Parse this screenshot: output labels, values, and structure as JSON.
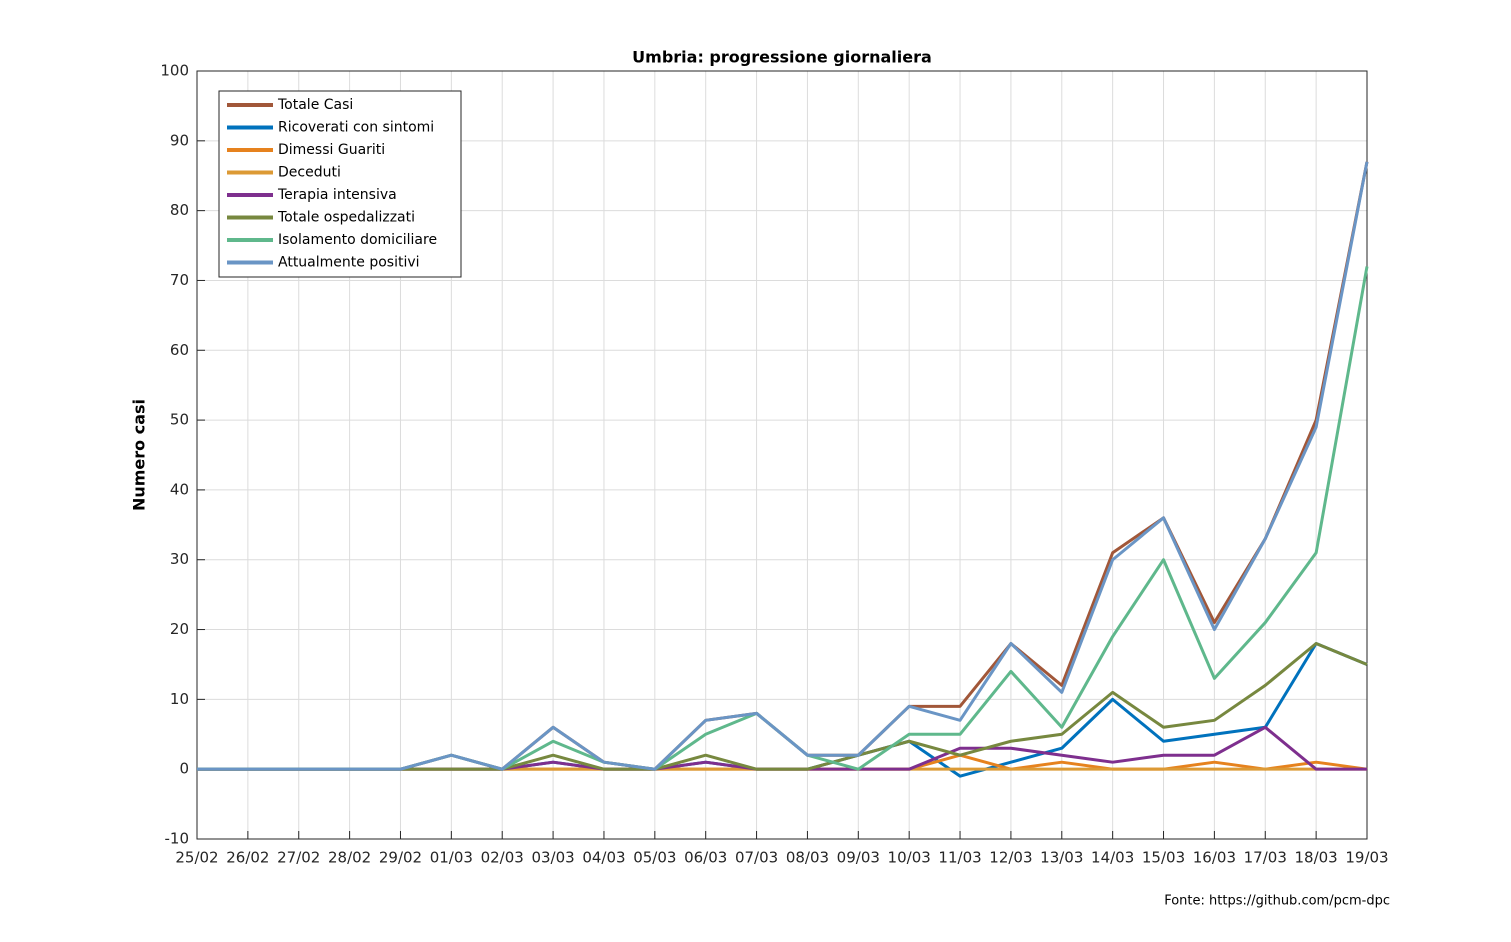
{
  "chart_data": {
    "type": "line",
    "title": "Umbria: progressione giornaliera",
    "y_label": "Numero casi",
    "source": "Fonte: https://github.com/pcm-dpc",
    "categories": [
      "25/02",
      "26/02",
      "27/02",
      "28/02",
      "29/02",
      "01/03",
      "02/03",
      "03/03",
      "04/03",
      "05/03",
      "06/03",
      "07/03",
      "08/03",
      "09/03",
      "10/03",
      "11/03",
      "12/03",
      "13/03",
      "14/03",
      "15/03",
      "16/03",
      "17/03",
      "18/03",
      "19/03"
    ],
    "ylim": [
      -10,
      100
    ],
    "yticks": [
      -10,
      0,
      10,
      20,
      30,
      40,
      50,
      60,
      70,
      80,
      90,
      100
    ],
    "grid": true,
    "legend": "upper left",
    "series": [
      {
        "name": "Totale Casi",
        "color": "#a15739",
        "values": [
          0,
          0,
          0,
          0,
          0,
          2,
          0,
          6,
          1,
          0,
          7,
          8,
          2,
          2,
          9,
          9,
          18,
          12,
          31,
          36,
          21,
          33,
          50,
          87
        ]
      },
      {
        "name": "Ricoverati con sintomi",
        "color": "#0072bd",
        "values": [
          0,
          0,
          0,
          0,
          0,
          0,
          0,
          1,
          0,
          0,
          1,
          0,
          0,
          2,
          4,
          -1,
          1,
          3,
          10,
          4,
          5,
          6,
          18,
          15
        ]
      },
      {
        "name": "Dimessi Guariti",
        "color": "#e6821e",
        "values": [
          0,
          0,
          0,
          0,
          0,
          0,
          0,
          0,
          0,
          0,
          0,
          0,
          0,
          0,
          0,
          2,
          0,
          1,
          0,
          0,
          1,
          0,
          1,
          0
        ]
      },
      {
        "name": "Deceduti",
        "color": "#dc9a35",
        "values": [
          0,
          0,
          0,
          0,
          0,
          0,
          0,
          0,
          0,
          0,
          0,
          0,
          0,
          0,
          0,
          0,
          0,
          0,
          0,
          0,
          0,
          0,
          0,
          0
        ]
      },
      {
        "name": "Terapia intensiva",
        "color": "#7e2f8e",
        "values": [
          0,
          0,
          0,
          0,
          0,
          0,
          0,
          1,
          0,
          0,
          1,
          0,
          0,
          0,
          0,
          3,
          3,
          2,
          1,
          2,
          2,
          6,
          0,
          0
        ]
      },
      {
        "name": "Totale ospedalizzati",
        "color": "#77883f",
        "values": [
          0,
          0,
          0,
          0,
          0,
          0,
          0,
          2,
          0,
          0,
          2,
          0,
          0,
          2,
          4,
          2,
          4,
          5,
          11,
          6,
          7,
          12,
          18,
          15
        ]
      },
      {
        "name": "Isolamento domiciliare",
        "color": "#5fb88c",
        "values": [
          0,
          0,
          0,
          0,
          0,
          2,
          0,
          4,
          1,
          0,
          5,
          8,
          2,
          0,
          5,
          5,
          14,
          6,
          19,
          30,
          13,
          21,
          31,
          72
        ]
      },
      {
        "name": "Attualmente positivi",
        "color": "#6a95c5",
        "values": [
          0,
          0,
          0,
          0,
          0,
          2,
          0,
          6,
          1,
          0,
          7,
          8,
          2,
          2,
          9,
          7,
          18,
          11,
          30,
          36,
          20,
          33,
          49,
          87
        ]
      }
    ]
  }
}
